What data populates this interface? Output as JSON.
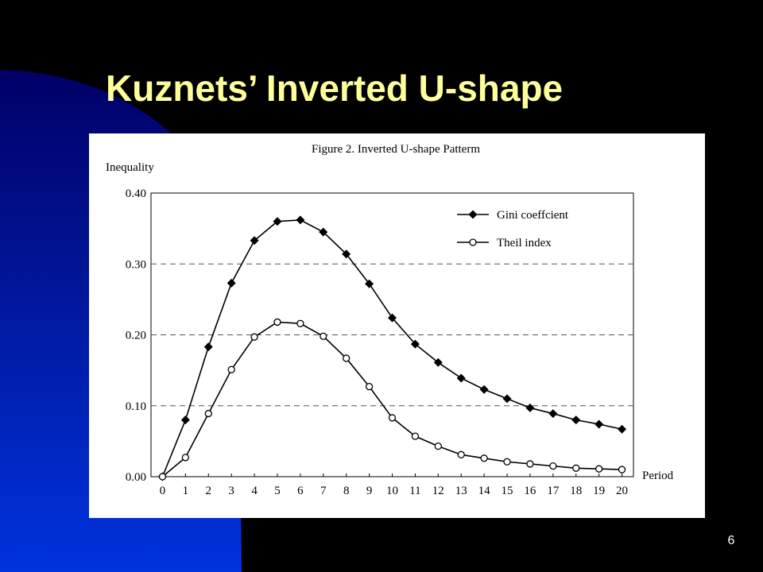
{
  "slide": {
    "title": "Kuznets’ Inverted U-shape",
    "page_number": "6"
  },
  "chart_data": {
    "type": "line",
    "title": "Figure 2. Inverted U-shape Patterm",
    "y_label": "Inequality",
    "x_label": "Period",
    "x": [
      0,
      1,
      2,
      3,
      4,
      5,
      6,
      7,
      8,
      9,
      10,
      11,
      12,
      13,
      14,
      15,
      16,
      17,
      18,
      19,
      20
    ],
    "xlim": [
      -0.5,
      20.5
    ],
    "xticks": [
      0,
      1,
      2,
      3,
      4,
      5,
      6,
      7,
      8,
      9,
      10,
      11,
      12,
      13,
      14,
      15,
      16,
      17,
      18,
      19,
      20
    ],
    "ylim": [
      0,
      0.4
    ],
    "yticks": [
      {
        "value": 0,
        "label": "0.00"
      },
      {
        "value": 0.1,
        "label": "0.10"
      },
      {
        "value": 0.2,
        "label": "0.20"
      },
      {
        "value": 0.3,
        "label": "0.30"
      },
      {
        "value": 0.4,
        "label": "0.40"
      }
    ],
    "grid": true,
    "legend": "upper right",
    "series": [
      {
        "name": "Gini coeffcient",
        "color": "#000000",
        "marker": "diamond",
        "values": [
          0,
          0.08,
          0.183,
          0.273,
          0.333,
          0.36,
          0.362,
          0.345,
          0.314,
          0.272,
          0.224,
          0.187,
          0.161,
          0.139,
          0.123,
          0.11,
          0.097,
          0.089,
          0.08,
          0.074,
          0.067
        ]
      },
      {
        "name": "Theil index",
        "color": "#000000",
        "marker": "circle",
        "values": [
          0,
          0.027,
          0.089,
          0.151,
          0.197,
          0.218,
          0.216,
          0.198,
          0.167,
          0.127,
          0.083,
          0.057,
          0.043,
          0.031,
          0.026,
          0.021,
          0.018,
          0.015,
          0.012,
          0.011,
          0.01
        ]
      }
    ]
  }
}
